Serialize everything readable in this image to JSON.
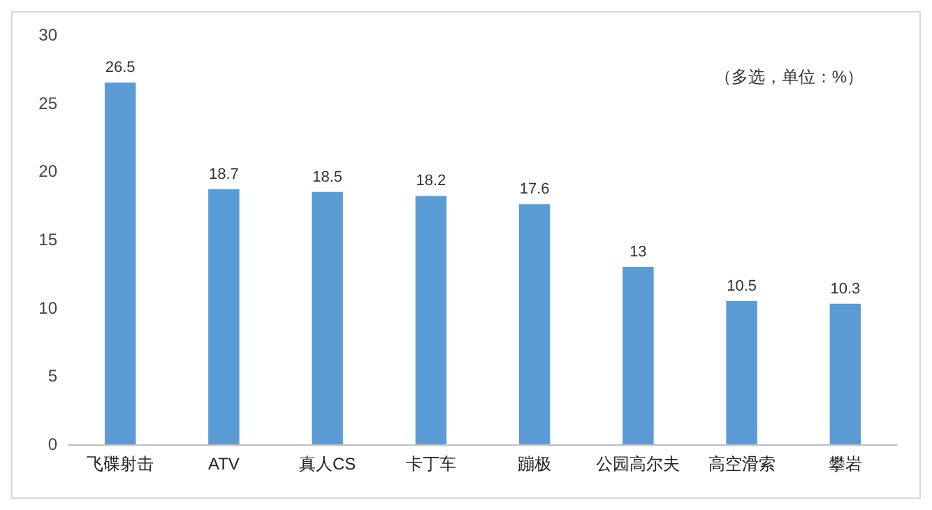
{
  "chart_data": {
    "type": "bar",
    "categories": [
      "飞碟射击",
      "ATV",
      "真人CS",
      "卡丁车",
      "蹦极",
      "公园高尔夫",
      "高空滑索",
      "攀岩"
    ],
    "values": [
      26.5,
      18.7,
      18.5,
      18.2,
      17.6,
      13,
      10.5,
      10.3
    ],
    "color": "#5b9bd5",
    "ylim": [
      0,
      30
    ],
    "yticks": [
      0,
      5,
      10,
      15,
      20,
      25,
      30
    ],
    "grid": false,
    "data_labels": true,
    "annotations": [
      "（多选，单位：%）"
    ]
  }
}
